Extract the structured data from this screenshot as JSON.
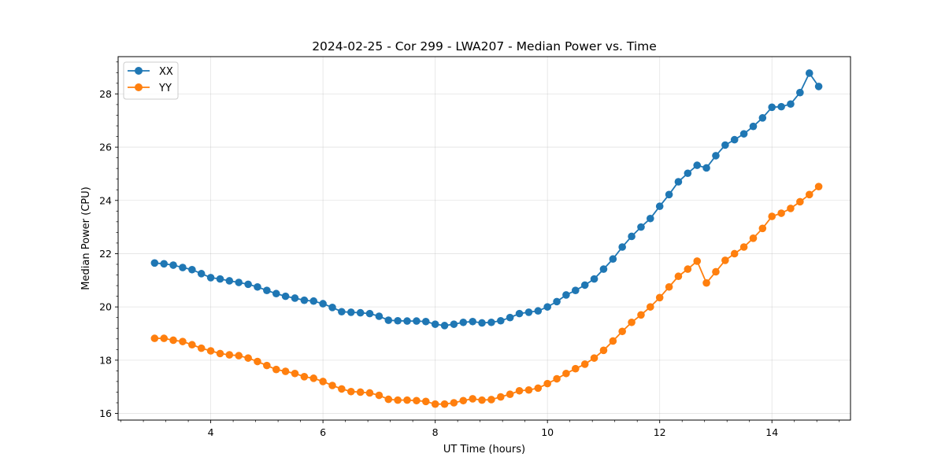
{
  "chart_data": {
    "type": "line",
    "title": "2024-02-25 - Cor 299 - LWA207 - Median Power vs. Time",
    "xlabel": "UT Time (hours)",
    "ylabel": "Median Power (CPU)",
    "xlim": [
      2.35,
      15.4
    ],
    "ylim": [
      15.75,
      29.4
    ],
    "xticks": [
      4,
      6,
      8,
      10,
      12,
      14
    ],
    "yticks": [
      16,
      18,
      20,
      22,
      24,
      26,
      28
    ],
    "xminor_step": 0.4,
    "yminor_step": 0.4,
    "grid": true,
    "legend_position": "top-left",
    "x": [
      3.0,
      3.167,
      3.333,
      3.5,
      3.667,
      3.833,
      4.0,
      4.167,
      4.333,
      4.5,
      4.667,
      4.833,
      5.0,
      5.167,
      5.333,
      5.5,
      5.667,
      5.833,
      6.0,
      6.167,
      6.333,
      6.5,
      6.667,
      6.833,
      7.0,
      7.167,
      7.333,
      7.5,
      7.667,
      7.833,
      8.0,
      8.167,
      8.333,
      8.5,
      8.667,
      8.833,
      9.0,
      9.167,
      9.333,
      9.5,
      9.667,
      9.833,
      10.0,
      10.167,
      10.333,
      10.5,
      10.667,
      10.833,
      11.0,
      11.167,
      11.333,
      11.5,
      11.667,
      11.833,
      12.0,
      12.167,
      12.333,
      12.5,
      12.667,
      12.833,
      13.0,
      13.167,
      13.333,
      13.5,
      13.667,
      13.833,
      14.0,
      14.167,
      14.333,
      14.5,
      14.667,
      14.833
    ],
    "series": [
      {
        "name": "XX",
        "color": "#1f77b4",
        "values": [
          21.65,
          21.62,
          21.57,
          21.48,
          21.4,
          21.25,
          21.1,
          21.05,
          20.98,
          20.92,
          20.85,
          20.75,
          20.62,
          20.5,
          20.4,
          20.33,
          20.25,
          20.22,
          20.12,
          19.98,
          19.82,
          19.8,
          19.78,
          19.75,
          19.65,
          19.5,
          19.48,
          19.47,
          19.47,
          19.45,
          19.35,
          19.3,
          19.35,
          19.42,
          19.45,
          19.4,
          19.42,
          19.48,
          19.6,
          19.75,
          19.8,
          19.85,
          20.0,
          20.2,
          20.45,
          20.62,
          20.82,
          21.05,
          21.42,
          21.8,
          22.25,
          22.65,
          23.0,
          23.32,
          23.78,
          24.22,
          24.7,
          25.02,
          25.32,
          25.22,
          25.68,
          26.08,
          26.28,
          26.5,
          26.78,
          27.1,
          27.5,
          27.52,
          27.62,
          28.05,
          28.78,
          28.28
        ]
      },
      {
        "name": "YY",
        "color": "#ff7f0e",
        "values": [
          18.82,
          18.82,
          18.75,
          18.7,
          18.58,
          18.45,
          18.35,
          18.25,
          18.2,
          18.17,
          18.08,
          17.95,
          17.8,
          17.65,
          17.58,
          17.5,
          17.38,
          17.32,
          17.2,
          17.05,
          16.92,
          16.82,
          16.8,
          16.77,
          16.68,
          16.53,
          16.5,
          16.5,
          16.48,
          16.45,
          16.35,
          16.35,
          16.4,
          16.48,
          16.55,
          16.5,
          16.52,
          16.62,
          16.72,
          16.85,
          16.88,
          16.95,
          17.12,
          17.3,
          17.5,
          17.68,
          17.85,
          18.08,
          18.37,
          18.72,
          19.08,
          19.42,
          19.7,
          20.0,
          20.35,
          20.75,
          21.15,
          21.42,
          21.72,
          20.9,
          21.32,
          21.75,
          22.0,
          22.25,
          22.58,
          22.95,
          23.4,
          23.52,
          23.7,
          23.95,
          24.22,
          24.52
        ]
      }
    ]
  }
}
